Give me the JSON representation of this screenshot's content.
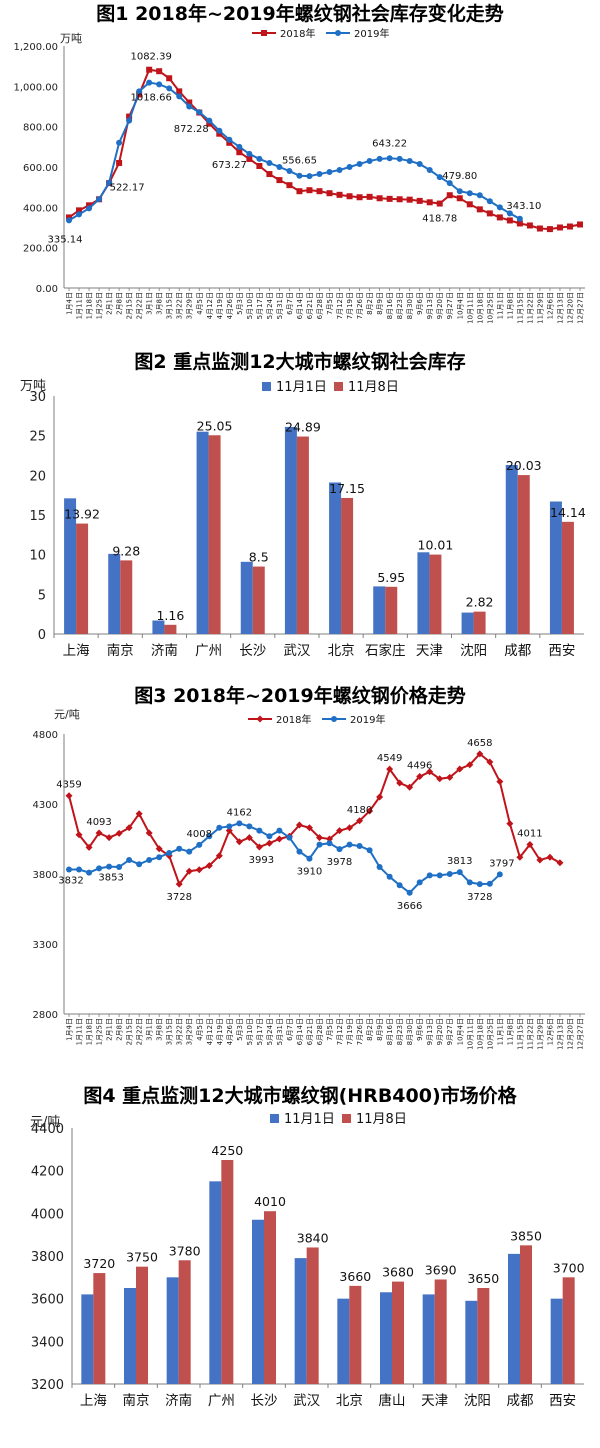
{
  "chart_data": [
    {
      "type": "line",
      "title": "图1 2018年~2019年螺纹钢社会库存变化走势",
      "unit": "万吨",
      "ylim": [
        0,
        1200
      ],
      "yticks": [
        "0.00",
        "200.00",
        "400.00",
        "600.00",
        "800.00",
        "1,000.00",
        "1,200.00"
      ],
      "x": [
        "1月4日",
        "1月11日",
        "1月18日",
        "1月25日",
        "2月1日",
        "2月8日",
        "2月15日",
        "2月22日",
        "3月1日",
        "3月8日",
        "3月15日",
        "3月22日",
        "3月29日",
        "4月5日",
        "4月12日",
        "4月19日",
        "4月26日",
        "5月3日",
        "5月10日",
        "5月17日",
        "5月24日",
        "5月31日",
        "6月7日",
        "6月14日",
        "6月21日",
        "6月28日",
        "7月5日",
        "7月12日",
        "7月19日",
        "7月26日",
        "8月2日",
        "8月9日",
        "8月16日",
        "8月23日",
        "8月30日",
        "9月6日",
        "9月13日",
        "9月20日",
        "9月27日",
        "10月4日",
        "10月11日",
        "10月18日",
        "10月25日",
        "11月1日",
        "11月8日",
        "11月15日",
        "11月22日",
        "11月29日",
        "12月6日",
        "12月13日",
        "12月20日",
        "12月27日"
      ],
      "series": [
        {
          "name": "2018年",
          "color": "#c0141b",
          "marker": "square",
          "values": [
            350,
            385,
            410,
            440,
            520,
            620,
            850,
            960,
            1082.39,
            1075,
            1040,
            975,
            920,
            870,
            815,
            765,
            720,
            673.27,
            640,
            605,
            565,
            535,
            510,
            480,
            485,
            480,
            470,
            462,
            455,
            450,
            452,
            445,
            442,
            440,
            438,
            432,
            425,
            418.78,
            460,
            445,
            415,
            390,
            370,
            350,
            335,
            320,
            310,
            295,
            292,
            300,
            305,
            315
          ]
        },
        {
          "name": "2019年",
          "color": "#1f6fc5",
          "marker": "circle",
          "values": [
            335.14,
            365,
            395,
            440,
            522.17,
            720,
            830,
            975,
            1018.66,
            1010,
            990,
            950,
            900,
            872.28,
            830,
            780,
            735,
            700,
            665,
            640,
            620,
            600,
            580,
            556.65,
            555,
            565,
            575,
            585,
            600,
            615,
            630,
            640,
            643.22,
            640,
            630,
            615,
            585,
            550,
            520,
            479.8,
            470,
            460,
            430,
            400,
            370,
            343.1,
            null,
            null,
            null,
            null,
            null,
            null
          ]
        }
      ],
      "annotations": [
        {
          "series": 0,
          "index": 8,
          "label": "1082.39"
        },
        {
          "series": 1,
          "index": 8,
          "label": "1018.66"
        },
        {
          "series": 1,
          "index": 0,
          "label": "335.14"
        },
        {
          "series": 1,
          "index": 4,
          "label": "522.17"
        },
        {
          "series": 1,
          "index": 13,
          "label": "872.28"
        },
        {
          "series": 0,
          "index": 17,
          "label": "673.27"
        },
        {
          "series": 1,
          "index": 23,
          "label": "556.65"
        },
        {
          "series": 1,
          "index": 32,
          "label": "643.22"
        },
        {
          "series": 0,
          "index": 37,
          "label": "418.78"
        },
        {
          "series": 1,
          "index": 39,
          "label": "479.80"
        },
        {
          "series": 1,
          "index": 45,
          "label": "343.10"
        }
      ],
      "legend": "top-center"
    },
    {
      "type": "bar",
      "title": "图2 重点监测12大城市螺纹钢社会库存",
      "unit": "万吨",
      "ylim": [
        0,
        30
      ],
      "yticks": [
        "0",
        "5",
        "10",
        "15",
        "20",
        "25",
        "30"
      ],
      "categories": [
        "上海",
        "南京",
        "济南",
        "广州",
        "长沙",
        "武汉",
        "北京",
        "石家庄",
        "天津",
        "沈阳",
        "成都",
        "西安"
      ],
      "series": [
        {
          "name": "11月1日",
          "color": "#4472c4",
          "values": [
            17.1,
            10.1,
            1.7,
            25.5,
            9.1,
            26.1,
            19.1,
            6.0,
            10.3,
            2.7,
            21.3,
            16.7
          ]
        },
        {
          "name": "11月8日",
          "color": "#c0504d",
          "values": [
            13.92,
            9.28,
            1.16,
            25.05,
            8.5,
            24.89,
            17.15,
            5.95,
            10.01,
            2.82,
            20.03,
            14.14
          ]
        }
      ],
      "labels": [
        "13.92",
        "9.28",
        "1.16",
        "25.05",
        "8.5",
        "24.89",
        "17.15",
        "5.95",
        "10.01",
        "2.82",
        "20.03",
        "14.14"
      ],
      "legend": "top-center"
    },
    {
      "type": "line",
      "title": "图3 2018年~2019年螺纹钢价格走势",
      "unit": "元/吨",
      "ylim": [
        2800,
        4800
      ],
      "yticks": [
        "2800",
        "3300",
        "3800",
        "4300",
        "4800"
      ],
      "x": [
        "1月4日",
        "1月11日",
        "1月18日",
        "1月25日",
        "2月1日",
        "2月8日",
        "2月15日",
        "2月22日",
        "3月1日",
        "3月8日",
        "3月15日",
        "3月22日",
        "3月29日",
        "4月5日",
        "4月12日",
        "4月19日",
        "4月26日",
        "5月3日",
        "5月10日",
        "5月17日",
        "5月24日",
        "5月31日",
        "6月7日",
        "6月14日",
        "6月21日",
        "6月28日",
        "7月5日",
        "7月12日",
        "7月19日",
        "7月26日",
        "8月2日",
        "8月9日",
        "8月16日",
        "8月23日",
        "8月30日",
        "9月6日",
        "9月13日",
        "9月20日",
        "9月27日",
        "10月4日",
        "10月11日",
        "10月18日",
        "10月25日",
        "11月1日",
        "11月8日",
        "11月15日",
        "11月22日",
        "11月29日",
        "12月6日",
        "12月13日",
        "12月20日",
        "12月27日"
      ],
      "series": [
        {
          "name": "2018年",
          "color": "#c0141b",
          "marker": "diamond",
          "values": [
            4359,
            4080,
            3990,
            4093,
            4060,
            4090,
            4130,
            4230,
            4093,
            3980,
            3930,
            3728,
            3820,
            3830,
            3860,
            3930,
            4110,
            4030,
            4060,
            3993,
            4020,
            4050,
            4070,
            4150,
            4130,
            4060,
            4050,
            4110,
            4130,
            4180,
            4250,
            4350,
            4549,
            4450,
            4420,
            4496,
            4530,
            4480,
            4490,
            4550,
            4580,
            4658,
            4600,
            4460,
            4160,
            3920,
            4011,
            3900,
            3920,
            3880,
            null,
            null
          ]
        },
        {
          "name": "2019年",
          "color": "#1f6fc5",
          "marker": "circle",
          "values": [
            3832,
            3832,
            3810,
            3840,
            3853,
            3850,
            3900,
            3870,
            3900,
            3920,
            3950,
            3980,
            3960,
            4008,
            4070,
            4130,
            4140,
            4162,
            4140,
            4110,
            4070,
            4110,
            4060,
            3960,
            3910,
            4010,
            4020,
            3978,
            4010,
            4000,
            3970,
            3850,
            3780,
            3720,
            3666,
            3740,
            3790,
            3790,
            3800,
            3813,
            3740,
            3728,
            3730,
            3797,
            null,
            null,
            null,
            null,
            null,
            null,
            null,
            null
          ]
        }
      ],
      "annotations": [
        {
          "series": 0,
          "index": 0,
          "label": "4359"
        },
        {
          "series": 1,
          "index": 0,
          "label": "3832"
        },
        {
          "series": 0,
          "index": 3,
          "label": "4093"
        },
        {
          "series": 1,
          "index": 4,
          "label": "3853"
        },
        {
          "series": 0,
          "index": 11,
          "label": "3728"
        },
        {
          "series": 1,
          "index": 13,
          "label": "4008"
        },
        {
          "series": 1,
          "index": 17,
          "label": "4162"
        },
        {
          "series": 0,
          "index": 19,
          "label": "3993"
        },
        {
          "series": 1,
          "index": 24,
          "label": "3910"
        },
        {
          "series": 0,
          "index": 29,
          "label": "4180"
        },
        {
          "series": 1,
          "index": 27,
          "label": "3978"
        },
        {
          "series": 0,
          "index": 32,
          "label": "4549"
        },
        {
          "series": 1,
          "index": 34,
          "label": "3666"
        },
        {
          "series": 0,
          "index": 35,
          "label": "4496"
        },
        {
          "series": 0,
          "index": 41,
          "label": "4658"
        },
        {
          "series": 1,
          "index": 39,
          "label": "3813"
        },
        {
          "series": 1,
          "index": 41,
          "label": "3728"
        },
        {
          "series": 1,
          "index": 43,
          "label": "3797"
        },
        {
          "series": 0,
          "index": 46,
          "label": "4011"
        }
      ],
      "legend": "top-center"
    },
    {
      "type": "bar",
      "title": "图4 重点监测12大城市螺纹钢(HRB400)市场价格",
      "unit": "元/吨",
      "ylim": [
        3200,
        4400
      ],
      "yticks": [
        "3200",
        "3400",
        "3600",
        "3800",
        "4000",
        "4200",
        "4400"
      ],
      "categories": [
        "上海",
        "南京",
        "济南",
        "广州",
        "长沙",
        "武汉",
        "北京",
        "唐山",
        "天津",
        "沈阳",
        "成都",
        "西安"
      ],
      "series": [
        {
          "name": "11月1日",
          "color": "#4472c4",
          "values": [
            3620,
            3650,
            3700,
            4150,
            3970,
            3790,
            3600,
            3630,
            3620,
            3590,
            3810,
            3600
          ]
        },
        {
          "name": "11月8日",
          "color": "#c0504d",
          "values": [
            3720,
            3750,
            3780,
            4250,
            4010,
            3840,
            3660,
            3680,
            3690,
            3650,
            3850,
            3700
          ]
        }
      ],
      "labels": [
        "3720",
        "3750",
        "3780",
        "4250",
        "4010",
        "3840",
        "3660",
        "3680",
        "3690",
        "3650",
        "3850",
        "3700"
      ],
      "legend": "top-center"
    }
  ]
}
